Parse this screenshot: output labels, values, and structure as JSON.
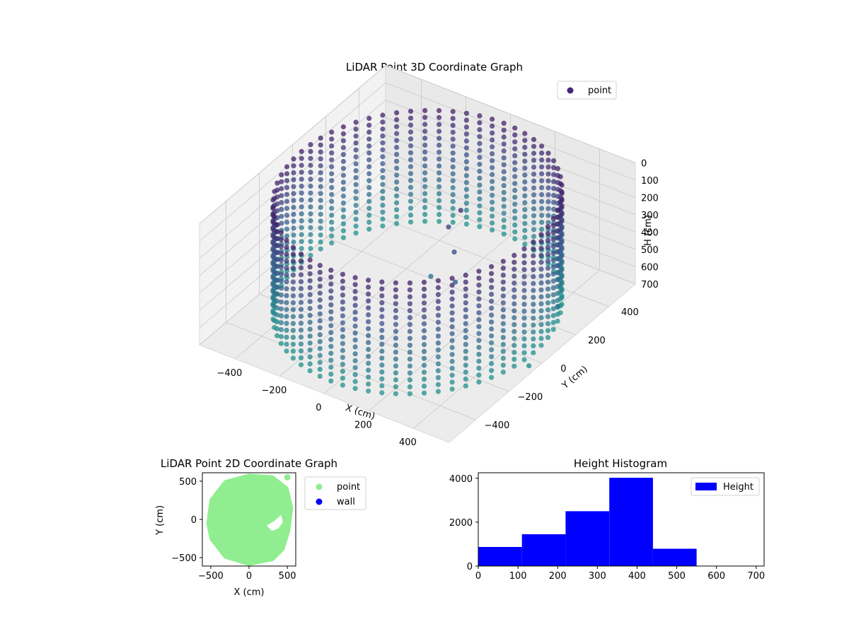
{
  "chart_data": [
    {
      "type": "scatter3d",
      "title": "LiDAR Point 3D Coordinate Graph",
      "xlabel": "X (cm)",
      "ylabel": "Y (cm)",
      "zlabel": "H (cm)",
      "xlim": [
        -560,
        560
      ],
      "ylim": [
        -560,
        560
      ],
      "zlim": [
        700,
        0
      ],
      "x_ticks": [
        "−400",
        "−200",
        "0",
        "200",
        "400"
      ],
      "y_ticks": [
        "−400",
        "−200",
        "0",
        "200",
        "400"
      ],
      "z_ticks": [
        "0",
        "100",
        "200",
        "300",
        "400",
        "500",
        "600",
        "700"
      ],
      "legend": {
        "position": "upper-right",
        "entries": [
          {
            "label": "point",
            "color": "#46277a"
          }
        ]
      },
      "colormap": "viridis",
      "series": [
        {
          "name": "point",
          "description_shape": "cylindrical wall of points around the origin",
          "ring_radius": 520,
          "height_range": [
            0,
            700
          ],
          "stray_points": [
            {
              "x": 120,
              "y": 100,
              "h": 120
            },
            {
              "x": 80,
              "y": 80,
              "h": 220
            },
            {
              "x": 150,
              "y": 20,
              "h": 280
            },
            {
              "x": 200,
              "y": -40,
              "h": 380
            },
            {
              "x": 60,
              "y": 0,
              "h": 450
            },
            {
              "x": 540,
              "y": 120,
              "h": 480
            },
            {
              "x": 560,
              "y": -80,
              "h": 650
            }
          ]
        }
      ],
      "grid": true
    },
    {
      "type": "scatter",
      "title": "LiDAR Point 2D Coordinate Graph",
      "xlabel": "X (cm)",
      "ylabel": "Y (cm)",
      "xlim": [
        -610,
        610
      ],
      "ylim": [
        -610,
        610
      ],
      "x_ticks": [
        "−500",
        "0",
        "500"
      ],
      "y_ticks": [
        "−500",
        "0",
        "500"
      ],
      "legend": {
        "position": "outside-right",
        "entries": [
          {
            "label": "point",
            "color": "#90ee90"
          },
          {
            "label": "wall",
            "color": "#0000ff"
          }
        ]
      },
      "series": [
        {
          "name": "point",
          "color": "#90ee90",
          "description_shape": "filled disk of points",
          "center": [
            0,
            0
          ],
          "radius": 560,
          "points_outline": [
            [
              -520,
              -50
            ],
            [
              -480,
              250
            ],
            [
              -300,
              480
            ],
            [
              0,
              560
            ],
            [
              300,
              540
            ],
            [
              480,
              400
            ],
            [
              540,
              150
            ],
            [
              500,
              -150
            ],
            [
              430,
              -380
            ],
            [
              300,
              -510
            ],
            [
              0,
              -570
            ],
            [
              -300,
              -480
            ],
            [
              -480,
              -250
            ]
          ],
          "extra_points": [
            [
              500,
              550
            ]
          ],
          "void_outline": [
            [
              230,
              -80
            ],
            [
              330,
              -20
            ],
            [
              420,
              60
            ],
            [
              440,
              -40
            ],
            [
              380,
              -120
            ],
            [
              300,
              -150
            ]
          ]
        },
        {
          "name": "wall",
          "color": "#0000ff",
          "points": []
        }
      ],
      "grid": false
    },
    {
      "type": "bar",
      "title": "Height Histogram",
      "xlabel": "",
      "ylabel": "",
      "xlim": [
        0,
        720
      ],
      "ylim": [
        0,
        4250
      ],
      "x_ticks": [
        "0",
        "100",
        "200",
        "300",
        "400",
        "500",
        "600",
        "700"
      ],
      "y_ticks": [
        "0",
        "2000",
        "4000"
      ],
      "legend": {
        "position": "upper-right",
        "entries": [
          {
            "label": "Height",
            "color": "#0000ff"
          }
        ]
      },
      "bin_edges": [
        0,
        110,
        220,
        330,
        440,
        550,
        660
      ],
      "values": [
        870,
        1450,
        2500,
        4020,
        790,
        0
      ],
      "color": "#0000ff",
      "grid": false
    }
  ]
}
